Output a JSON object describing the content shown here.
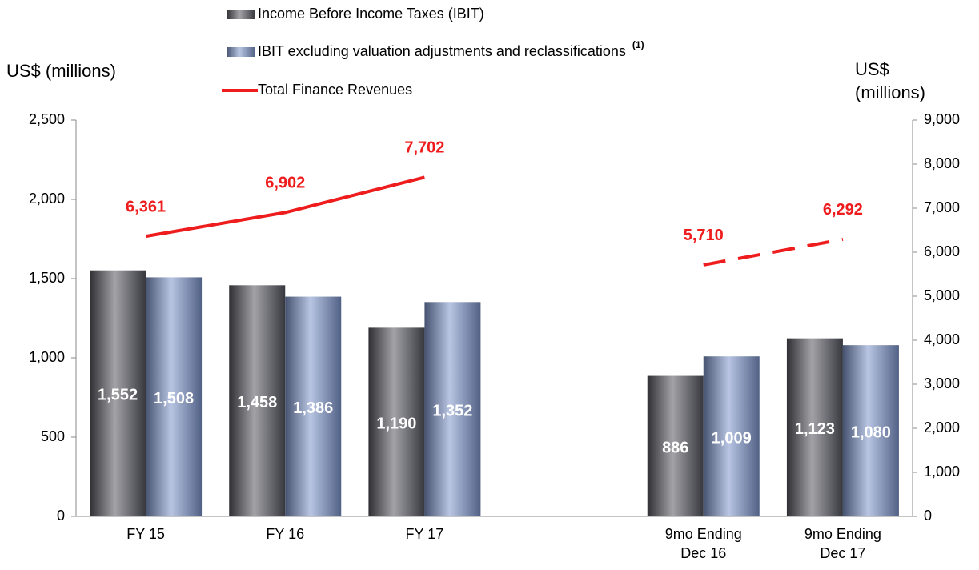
{
  "chart_data": {
    "type": "bar",
    "y_axis_title": "US$ (millions)",
    "y2_axis_title": "US$ (millions)",
    "categories": [
      "FY 15",
      "FY 16",
      "FY 17",
      null,
      "9mo Ending Dec 16",
      "9mo Ending Dec 17"
    ],
    "series": [
      {
        "name": "Income Before Income Taxes (IBIT)",
        "type": "bar",
        "axis": "y",
        "color": "#55565f",
        "values": [
          1552,
          1458,
          1190,
          null,
          886,
          1123
        ],
        "value_labels": [
          "1,552",
          "1,458",
          "1,190",
          null,
          "886",
          "1,123"
        ]
      },
      {
        "name": "IBIT excluding valuation adjustments and reclassifications",
        "footnote_marker": "(1)",
        "type": "bar",
        "axis": "y",
        "color": "#7d95cc",
        "values": [
          1508,
          1386,
          1352,
          null,
          1009,
          1080
        ],
        "value_labels": [
          "1,508",
          "1,386",
          "1,352",
          null,
          "1,009",
          "1,080"
        ]
      },
      {
        "name": "Total Finance Revenues",
        "type": "line",
        "axis": "y2",
        "color": "#ee1c1c",
        "line_styles": [
          "solid",
          "dashed"
        ],
        "values": [
          6361,
          6902,
          7702,
          null,
          5710,
          6292
        ],
        "value_labels": [
          "6,361",
          "6,902",
          "7,702",
          null,
          "5,710",
          "6,292"
        ]
      }
    ],
    "ylim": [
      0,
      2500
    ],
    "yticks": [
      0,
      500,
      {
        "value": 1000,
        "label": "1,000"
      },
      {
        "value": 1500,
        "label": "1,500"
      },
      {
        "value": 2000,
        "label": "2,000"
      },
      {
        "value": 2500,
        "label": "2,500"
      }
    ],
    "y2lim": [
      0,
      9000
    ],
    "y2ticks": [
      0,
      {
        "value": 1000,
        "label": "1,000"
      },
      {
        "value": 2000,
        "label": "2,000"
      },
      {
        "value": 3000,
        "label": "3,000"
      },
      {
        "value": 4000,
        "label": "4,000"
      },
      {
        "value": 5000,
        "label": "5,000"
      },
      {
        "value": 6000,
        "label": "6,000"
      },
      {
        "value": 7000,
        "label": "7,000"
      },
      {
        "value": 8000,
        "label": "8,000"
      },
      {
        "value": 9000,
        "label": "9,000"
      }
    ],
    "grid": false
  }
}
